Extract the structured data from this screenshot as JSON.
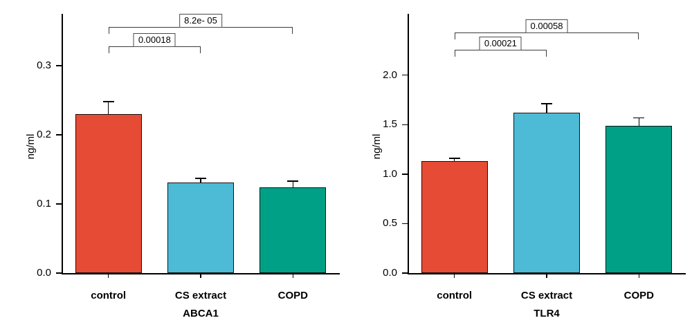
{
  "figure": {
    "background": "#ffffff"
  },
  "chart_data": [
    {
      "type": "bar",
      "title": "ABCA1",
      "ylabel": "ng/ml",
      "categories": [
        "control",
        "CS extract",
        "COPD"
      ],
      "values": [
        0.23,
        0.131,
        0.124
      ],
      "errors": [
        0.018,
        0.006,
        0.009
      ],
      "bar_colors": [
        "#E64B35",
        "#4DBBD5",
        "#00A087"
      ],
      "ylim": [
        0,
        0.365
      ],
      "yticks": [
        0.0,
        0.1,
        0.2,
        0.3
      ],
      "ytick_labels": [
        "0.0",
        "0.1",
        "0.2",
        "0.3"
      ],
      "grid": false,
      "legend": "none",
      "annotations": [
        {
          "label": "0.00018",
          "from": 0,
          "to": 1,
          "y": 0.328
        },
        {
          "label": "8.2e- 05",
          "from": 0,
          "to": 2,
          "y": 0.356
        }
      ]
    },
    {
      "type": "bar",
      "title": "TLR4",
      "ylabel": "ng/ml",
      "categories": [
        "control",
        "CS extract",
        "COPD"
      ],
      "values": [
        1.13,
        1.62,
        1.49
      ],
      "errors": [
        0.03,
        0.09,
        0.08
      ],
      "bar_colors": [
        "#E64B35",
        "#4DBBD5",
        "#00A087"
      ],
      "ylim": [
        0,
        2.55
      ],
      "yticks": [
        0.0,
        0.5,
        1.0,
        1.5,
        2.0
      ],
      "ytick_labels": [
        "0.0",
        "0.5",
        "1.0",
        "1.5",
        "2.0"
      ],
      "grid": false,
      "legend": "none",
      "annotations": [
        {
          "label": "0.00021",
          "from": 0,
          "to": 1,
          "y": 2.26
        },
        {
          "label": "0.00058",
          "from": 0,
          "to": 2,
          "y": 2.43
        }
      ]
    }
  ]
}
